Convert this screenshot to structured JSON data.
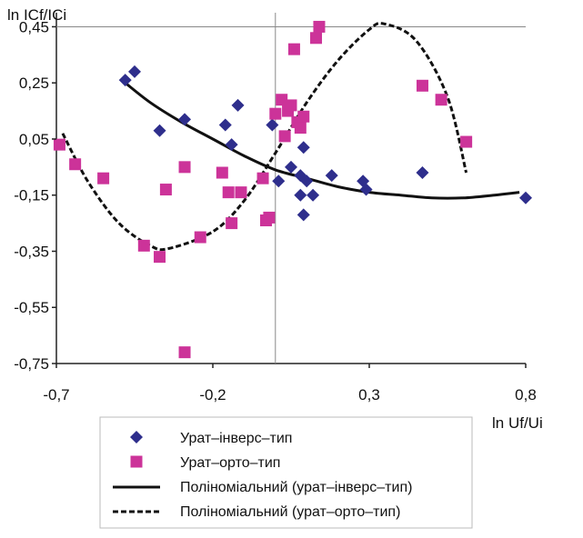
{
  "chart_data": {
    "type": "scatter",
    "title": "",
    "ylabel": "ln ICf/ICi",
    "xlabel": "ln Uf/Ui",
    "xlim": [
      -0.7,
      0.8
    ],
    "ylim": [
      -0.75,
      0.5
    ],
    "x_ticks": [
      "-0,7",
      "-0,2",
      "0,3",
      "0,8"
    ],
    "y_ticks": [
      "0,45",
      "0,25",
      "0,05",
      "-0,15",
      "-0,35",
      "-0,55",
      "-0,75"
    ],
    "grid": "vertical line at x = 0, horizontal line at y = 0.45",
    "legend_position": "bottom",
    "series": [
      {
        "name": "Урат–інверс–тип",
        "kind": "points",
        "marker": "diamond",
        "color": "#2E2E8C",
        "points": [
          [
            -0.48,
            0.26
          ],
          [
            -0.45,
            0.29
          ],
          [
            -0.37,
            0.08
          ],
          [
            -0.29,
            0.12
          ],
          [
            -0.16,
            0.1
          ],
          [
            -0.14,
            0.03
          ],
          [
            -0.12,
            0.17
          ],
          [
            -0.01,
            0.1
          ],
          [
            0.01,
            -0.1
          ],
          [
            0.05,
            -0.05
          ],
          [
            0.08,
            -0.08
          ],
          [
            0.09,
            0.02
          ],
          [
            0.08,
            -0.15
          ],
          [
            0.1,
            -0.1
          ],
          [
            0.12,
            -0.15
          ],
          [
            0.09,
            -0.22
          ],
          [
            0.18,
            -0.08
          ],
          [
            0.28,
            -0.1
          ],
          [
            0.29,
            -0.13
          ],
          [
            0.47,
            -0.07
          ],
          [
            0.8,
            -0.16
          ]
        ]
      },
      {
        "name": "Урат–орто–тип",
        "kind": "points",
        "marker": "square",
        "color": "#CC3399",
        "points": [
          [
            -0.69,
            0.03
          ],
          [
            -0.64,
            -0.04
          ],
          [
            -0.55,
            -0.09
          ],
          [
            -0.42,
            -0.33
          ],
          [
            -0.37,
            -0.37
          ],
          [
            -0.35,
            -0.13
          ],
          [
            -0.29,
            -0.05
          ],
          [
            -0.29,
            -0.71
          ],
          [
            -0.24,
            -0.3
          ],
          [
            -0.17,
            -0.07
          ],
          [
            -0.15,
            -0.14
          ],
          [
            -0.14,
            -0.25
          ],
          [
            -0.11,
            -0.14
          ],
          [
            -0.04,
            -0.09
          ],
          [
            -0.03,
            -0.24
          ],
          [
            -0.02,
            -0.23
          ],
          [
            0.0,
            0.14
          ],
          [
            0.02,
            0.19
          ],
          [
            0.03,
            0.06
          ],
          [
            0.04,
            0.15
          ],
          [
            0.05,
            0.17
          ],
          [
            0.06,
            0.37
          ],
          [
            0.07,
            0.11
          ],
          [
            0.08,
            0.09
          ],
          [
            0.09,
            0.13
          ],
          [
            0.13,
            0.41
          ],
          [
            0.14,
            0.45
          ],
          [
            0.47,
            0.24
          ],
          [
            0.53,
            0.19
          ],
          [
            0.61,
            0.04
          ]
        ]
      },
      {
        "name": "Поліноміальний (урат–інверс–тип)",
        "kind": "line",
        "style": "solid",
        "color": "#111111",
        "points": [
          [
            -0.48,
            0.25
          ],
          [
            -0.4,
            0.18
          ],
          [
            -0.3,
            0.11
          ],
          [
            -0.2,
            0.05
          ],
          [
            -0.1,
            -0.01
          ],
          [
            0.0,
            -0.06
          ],
          [
            0.1,
            -0.09
          ],
          [
            0.2,
            -0.12
          ],
          [
            0.3,
            -0.14
          ],
          [
            0.4,
            -0.15
          ],
          [
            0.5,
            -0.16
          ],
          [
            0.6,
            -0.16
          ],
          [
            0.7,
            -0.15
          ],
          [
            0.78,
            -0.14
          ]
        ]
      },
      {
        "name": "Поліноміальний (урат–орто–тип)",
        "kind": "line",
        "style": "dashed",
        "color": "#111111",
        "points": [
          [
            -0.68,
            0.07
          ],
          [
            -0.6,
            -0.1
          ],
          [
            -0.5,
            -0.25
          ],
          [
            -0.4,
            -0.33
          ],
          [
            -0.34,
            -0.34
          ],
          [
            -0.2,
            -0.28
          ],
          [
            -0.1,
            -0.17
          ],
          [
            0.0,
            0.0
          ],
          [
            0.1,
            0.18
          ],
          [
            0.2,
            0.33
          ],
          [
            0.3,
            0.44
          ],
          [
            0.35,
            0.46
          ],
          [
            0.45,
            0.4
          ],
          [
            0.55,
            0.2
          ],
          [
            0.61,
            -0.07
          ]
        ]
      }
    ]
  }
}
